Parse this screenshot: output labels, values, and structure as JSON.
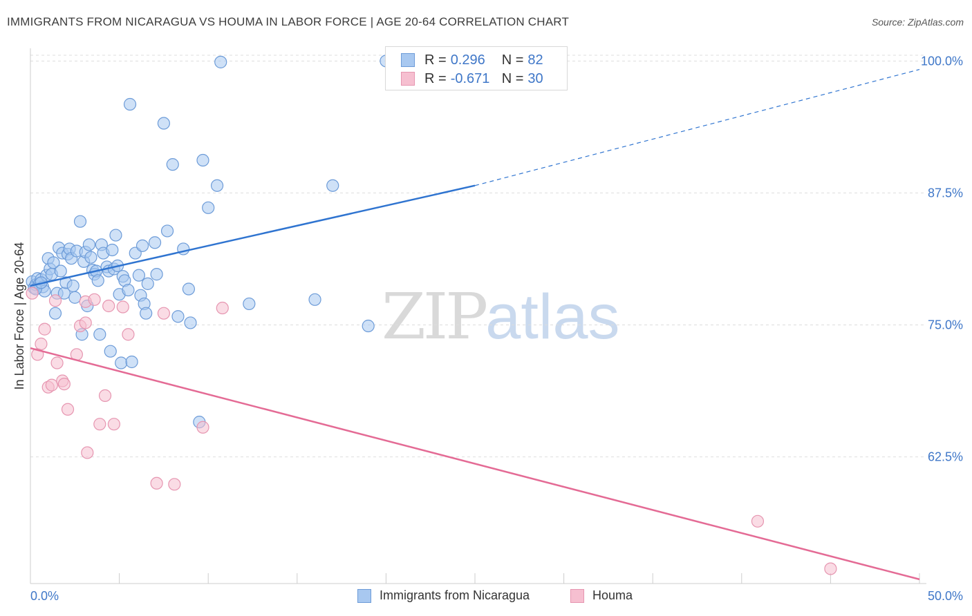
{
  "title": "IMMIGRANTS FROM NICARAGUA VS HOUMA IN LABOR FORCE | AGE 20-64 CORRELATION CHART",
  "source": "Source: ZipAtlas.com",
  "watermark": {
    "zip": "ZIP",
    "atlas": "atlas"
  },
  "legend": {
    "rows": [
      {
        "r_label": "R =",
        "r_value": "0.296",
        "n_label": "N =",
        "n_value": "82"
      },
      {
        "r_label": "R =",
        "r_value": "-0.671",
        "n_label": "N =",
        "n_value": "30"
      }
    ]
  },
  "colors": {
    "blue_fill": "#a8c8f0",
    "blue_stroke": "#6c9bd8",
    "blue_line": "#2f74d0",
    "pink_fill": "#f6bfd0",
    "pink_stroke": "#e695b0",
    "pink_line": "#e46b95",
    "tick_text": "#3f77c8",
    "grid": "#dddddd"
  },
  "chart_data": {
    "type": "scatter",
    "title": "IMMIGRANTS FROM NICARAGUA VS HOUMA IN LABOR FORCE | AGE 20-64 CORRELATION CHART",
    "xlabel": "",
    "ylabel": "In Labor Force | Age 20-64",
    "x_tick_labels": [
      "0.0%",
      "50.0%"
    ],
    "y_tick_labels": [
      "100.0%",
      "87.5%",
      "75.0%",
      "62.5%"
    ],
    "y_ticks": [
      100.0,
      87.5,
      75.0,
      62.5
    ],
    "xlim": [
      0,
      50
    ],
    "ylim": [
      50.5,
      101.2
    ],
    "grid": true,
    "legend_position": "top-center",
    "series": [
      {
        "name": "Immigrants from Nicaragua",
        "r": 0.296,
        "n": 82,
        "trend": {
          "x0": 0,
          "y0": 78.7,
          "x1": 25,
          "y1": 88.2,
          "dashed_to_x": 50,
          "dashed_to_y": 99.2
        },
        "points": [
          [
            0.1,
            79.1
          ],
          [
            0.2,
            78.5
          ],
          [
            0.3,
            78.8
          ],
          [
            0.4,
            79.4
          ],
          [
            0.5,
            78.9
          ],
          [
            0.6,
            79.3
          ],
          [
            0.7,
            78.6
          ],
          [
            0.8,
            78.2
          ],
          [
            0.9,
            79.7
          ],
          [
            1.0,
            81.3
          ],
          [
            1.1,
            80.3
          ],
          [
            1.2,
            79.8
          ],
          [
            1.3,
            80.9
          ],
          [
            1.4,
            76.1
          ],
          [
            1.5,
            78.0
          ],
          [
            1.6,
            82.3
          ],
          [
            1.7,
            80.1
          ],
          [
            1.8,
            81.8
          ],
          [
            1.9,
            78.0
          ],
          [
            2.0,
            79.0
          ],
          [
            2.1,
            81.7
          ],
          [
            2.2,
            82.2
          ],
          [
            2.3,
            81.3
          ],
          [
            2.4,
            78.7
          ],
          [
            2.5,
            77.6
          ],
          [
            2.6,
            82.0
          ],
          [
            2.8,
            84.8
          ],
          [
            2.9,
            74.1
          ],
          [
            3.0,
            81.0
          ],
          [
            3.1,
            81.9
          ],
          [
            3.2,
            76.8
          ],
          [
            3.3,
            82.6
          ],
          [
            3.4,
            81.4
          ],
          [
            3.5,
            80.2
          ],
          [
            3.6,
            79.8
          ],
          [
            3.7,
            80.1
          ],
          [
            3.8,
            79.2
          ],
          [
            3.9,
            74.1
          ],
          [
            4.0,
            82.6
          ],
          [
            4.1,
            81.8
          ],
          [
            4.3,
            80.5
          ],
          [
            4.4,
            80.1
          ],
          [
            4.5,
            72.5
          ],
          [
            4.6,
            82.1
          ],
          [
            4.7,
            80.3
          ],
          [
            4.8,
            83.5
          ],
          [
            4.9,
            80.6
          ],
          [
            5.0,
            77.9
          ],
          [
            5.1,
            71.4
          ],
          [
            5.2,
            79.6
          ],
          [
            5.3,
            79.2
          ],
          [
            5.5,
            78.3
          ],
          [
            5.6,
            95.9
          ],
          [
            5.7,
            71.5
          ],
          [
            5.9,
            81.8
          ],
          [
            6.1,
            79.7
          ],
          [
            6.2,
            77.8
          ],
          [
            6.3,
            82.5
          ],
          [
            6.4,
            77.0
          ],
          [
            6.5,
            76.1
          ],
          [
            6.6,
            78.9
          ],
          [
            7.0,
            82.8
          ],
          [
            7.1,
            79.8
          ],
          [
            7.5,
            94.1
          ],
          [
            7.7,
            83.9
          ],
          [
            8.0,
            90.2
          ],
          [
            8.3,
            75.8
          ],
          [
            8.6,
            82.2
          ],
          [
            8.9,
            78.4
          ],
          [
            9.0,
            75.2
          ],
          [
            9.5,
            65.8
          ],
          [
            9.7,
            90.6
          ],
          [
            10.0,
            86.1
          ],
          [
            10.5,
            88.2
          ],
          [
            10.7,
            99.9
          ],
          [
            12.3,
            77.0
          ],
          [
            16.0,
            77.4
          ],
          [
            17.0,
            88.2
          ],
          [
            19.0,
            74.9
          ],
          [
            20.0,
            100.0
          ],
          [
            0.3,
            78.4
          ],
          [
            0.6,
            79.0
          ]
        ]
      },
      {
        "name": "Houma",
        "r": -0.671,
        "n": 30,
        "trend": {
          "x0": 0,
          "y0": 72.8,
          "x1": 50,
          "y1": 50.9
        },
        "points": [
          [
            0.1,
            78.0
          ],
          [
            0.4,
            72.2
          ],
          [
            0.6,
            73.2
          ],
          [
            0.8,
            74.6
          ],
          [
            1.0,
            69.1
          ],
          [
            1.2,
            69.3
          ],
          [
            1.4,
            77.3
          ],
          [
            1.5,
            71.4
          ],
          [
            1.8,
            69.7
          ],
          [
            1.9,
            69.4
          ],
          [
            2.1,
            67.0
          ],
          [
            2.6,
            72.2
          ],
          [
            2.8,
            74.9
          ],
          [
            3.1,
            75.2
          ],
          [
            3.1,
            77.2
          ],
          [
            3.2,
            62.9
          ],
          [
            3.6,
            77.4
          ],
          [
            3.9,
            65.6
          ],
          [
            4.2,
            68.3
          ],
          [
            4.4,
            76.8
          ],
          [
            4.7,
            65.6
          ],
          [
            5.2,
            76.7
          ],
          [
            5.5,
            74.1
          ],
          [
            7.1,
            60.0
          ],
          [
            7.5,
            76.1
          ],
          [
            8.1,
            59.9
          ],
          [
            9.7,
            65.3
          ],
          [
            10.8,
            76.6
          ],
          [
            40.9,
            56.4
          ],
          [
            45.0,
            51.9
          ]
        ]
      }
    ]
  },
  "bottom_legend": [
    {
      "label": "Immigrants from Nicaragua"
    },
    {
      "label": "Houma"
    }
  ]
}
